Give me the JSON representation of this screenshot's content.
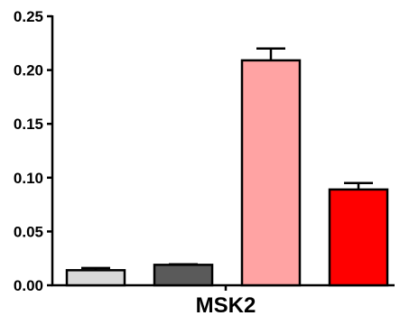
{
  "chart_data": {
    "type": "bar",
    "xlabel": "MSK2",
    "ylabel": "",
    "title": "",
    "ylim": [
      0,
      0.25
    ],
    "yticks": [
      "0.00",
      "0.05",
      "0.10",
      "0.15",
      "0.20",
      "0.25"
    ],
    "grid": false,
    "bars": [
      {
        "value": 0.014,
        "error": 0.002,
        "color": "#d9d9d9"
      },
      {
        "value": 0.019,
        "error": 0.0005,
        "color": "#5a5a5a"
      },
      {
        "value": 0.209,
        "error": 0.011,
        "color": "#ffa3a3"
      },
      {
        "value": 0.089,
        "error": 0.006,
        "color": "#ff0000"
      }
    ]
  }
}
